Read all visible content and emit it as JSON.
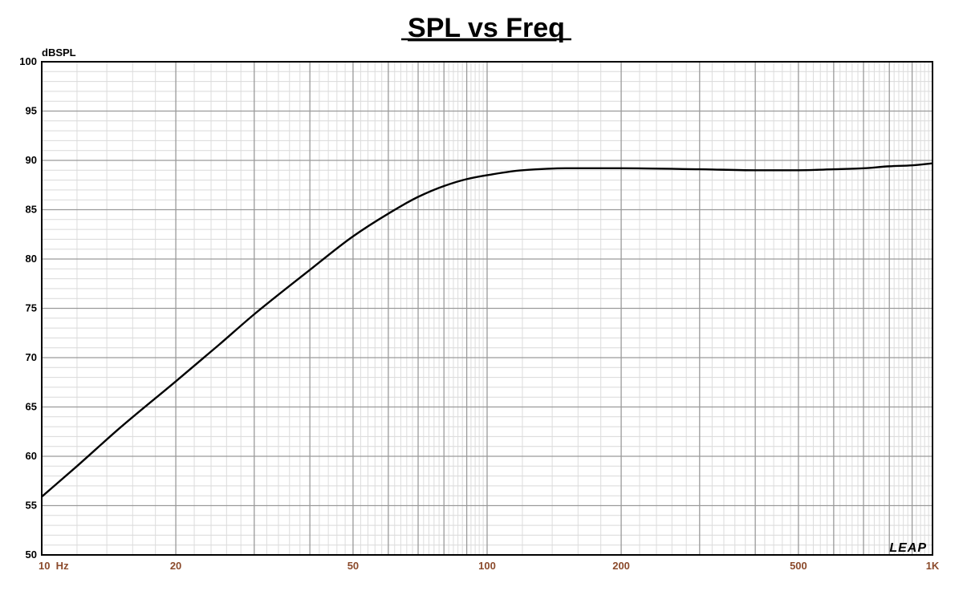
{
  "chart_data": {
    "type": "line",
    "title": "SPL vs Freq",
    "ylabel": "dBSPL",
    "xlabel": "",
    "xscale": "log",
    "xlim": [
      10,
      1000
    ],
    "ylim": [
      50,
      100
    ],
    "grid": true,
    "x_tick_labels": [
      {
        "value": 10,
        "label": "10  Hz"
      },
      {
        "value": 20,
        "label": "20"
      },
      {
        "value": 50,
        "label": "50"
      },
      {
        "value": 100,
        "label": "100"
      },
      {
        "value": 200,
        "label": "200"
      },
      {
        "value": 500,
        "label": "500"
      },
      {
        "value": 1000,
        "label": "1K"
      }
    ],
    "y_tick_labels": [
      "50",
      "55",
      "60",
      "65",
      "70",
      "75",
      "80",
      "85",
      "90",
      "95",
      "100"
    ],
    "series": [
      {
        "color": "#000000",
        "x": [
          10,
          12,
          15,
          20,
          25,
          30,
          40,
          50,
          60,
          70,
          80,
          90,
          100,
          120,
          150,
          200,
          300,
          400,
          500,
          600,
          700,
          800,
          900,
          1000
        ],
        "y": [
          55.9,
          59.0,
          62.9,
          67.6,
          71.3,
          74.4,
          78.9,
          82.3,
          84.6,
          86.3,
          87.4,
          88.1,
          88.5,
          89.0,
          89.2,
          89.2,
          89.1,
          89.0,
          89.0,
          89.1,
          89.2,
          89.4,
          89.5,
          89.7
        ]
      }
    ],
    "logo": "LEAP"
  }
}
